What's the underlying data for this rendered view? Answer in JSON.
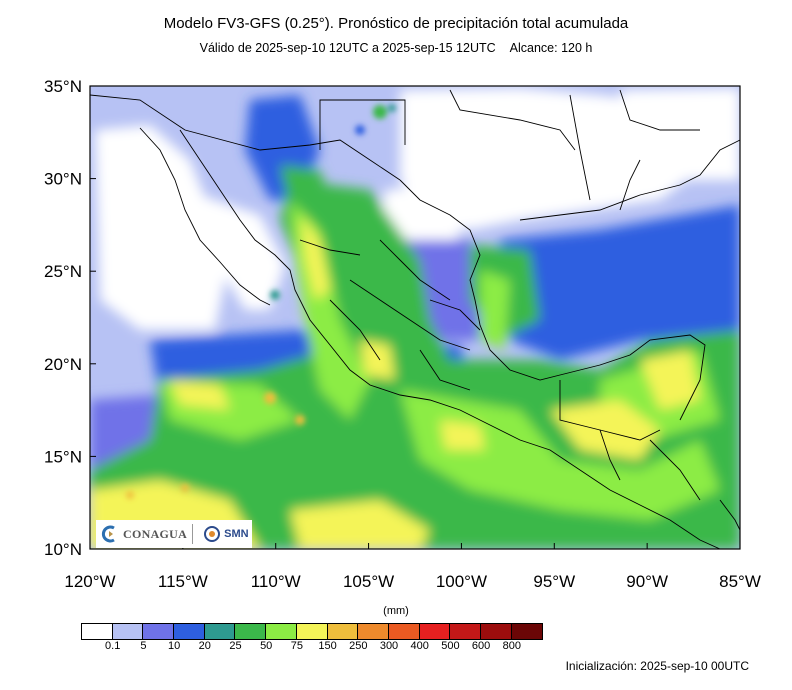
{
  "header": {
    "title": "Modelo FV3-GFS (0.25°). Pronóstico de precipitación total acumulada",
    "valid": "Válido de 2025-sep-10 12UTC a 2025-sep-15 12UTC",
    "lead": "Alcance: 120 h"
  },
  "axes": {
    "lat_ticks": [
      "35°N",
      "30°N",
      "25°N",
      "20°N",
      "15°N",
      "10°N"
    ],
    "lon_ticks": [
      "120°W",
      "115°W",
      "110°W",
      "105°W",
      "100°W",
      "95°W",
      "90°W",
      "85°W"
    ],
    "lat_range": [
      10,
      35
    ],
    "lon_range": [
      -120,
      -85
    ]
  },
  "legend": {
    "units": "(mm)",
    "labels": [
      "0.1",
      "5",
      "10",
      "20",
      "25",
      "50",
      "75",
      "150",
      "250",
      "300",
      "400",
      "500",
      "600",
      "800"
    ],
    "colors": [
      "#ffffff",
      "#b7c2f4",
      "#6f72e8",
      "#2e5fe0",
      "#2e9a90",
      "#3bb84a",
      "#8cec44",
      "#f4f458",
      "#efbe3c",
      "#ee8a2c",
      "#ea5a22",
      "#e62020",
      "#c41818",
      "#9c0d0d",
      "#6b0606"
    ]
  },
  "footer": {
    "init": "Inicialización: 2025-sep-10 00UTC"
  },
  "logos": {
    "conagua": "CONAGUA",
    "smn": "SMN"
  }
}
